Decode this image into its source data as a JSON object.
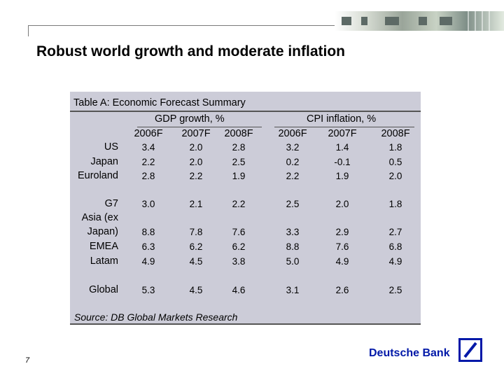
{
  "slide": {
    "title": "Robust world growth and moderate inflation",
    "page_number": "7"
  },
  "table": {
    "title": "Table A: Economic Forecast Summary",
    "groups": [
      "GDP growth, %",
      "CPI inflation, %"
    ],
    "columns": [
      "2006F",
      "2007F",
      "2008F",
      "2006F",
      "2007F",
      "2008F"
    ],
    "rows": [
      {
        "label": [
          "US"
        ],
        "values": [
          "3.4",
          "2.0",
          "2.8",
          "3.2",
          "1.4",
          "1.8"
        ]
      },
      {
        "label": [
          "Japan"
        ],
        "values": [
          "2.2",
          "2.0",
          "2.5",
          "0.2",
          "-0.1",
          "0.5"
        ]
      },
      {
        "label": [
          "Euroland"
        ],
        "values": [
          "2.8",
          "2.2",
          "1.9",
          "2.2",
          "1.9",
          "2.0"
        ]
      },
      {
        "label": [
          "G7"
        ],
        "values": [
          "3.0",
          "2.1",
          "2.2",
          "2.5",
          "2.0",
          "1.8"
        ]
      },
      {
        "label": [
          "Asia (ex",
          "Japan)"
        ],
        "values": [
          "8.8",
          "7.8",
          "7.6",
          "3.3",
          "2.9",
          "2.7"
        ]
      },
      {
        "label": [
          "EMEA"
        ],
        "values": [
          "6.3",
          "6.2",
          "6.2",
          "8.8",
          "7.6",
          "6.8"
        ]
      },
      {
        "label": [
          "Latam"
        ],
        "values": [
          "4.9",
          "4.5",
          "3.8",
          "5.0",
          "4.9",
          "4.9"
        ]
      },
      {
        "label": [
          "Global"
        ],
        "values": [
          "5.3",
          "4.5",
          "4.6",
          "3.1",
          "2.6",
          "2.5"
        ]
      }
    ],
    "source": "Source: DB Global Markets Research"
  },
  "brand": {
    "name": "Deutsche Bank",
    "color": "#0018a8",
    "logo_icon": "deutsche-bank-slash-logo-icon"
  }
}
